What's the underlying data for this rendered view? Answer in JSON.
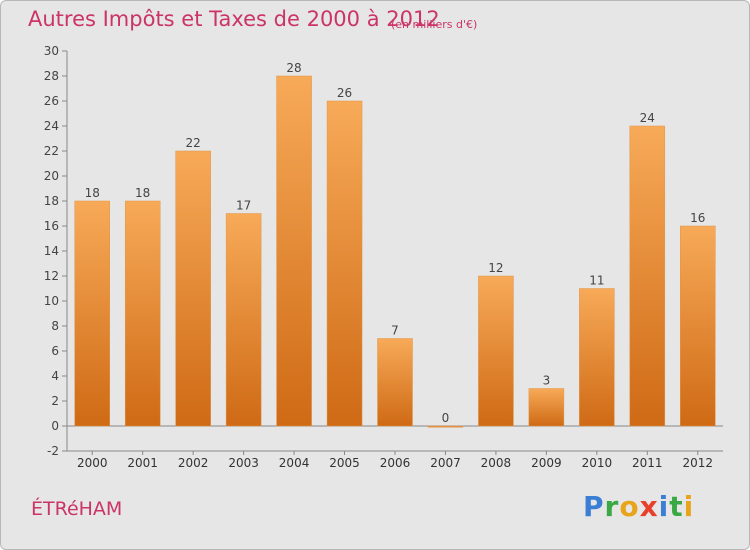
{
  "header": {
    "title": "Autres Impôts et Taxes de 2000 à 2012",
    "subtitle": "(en milliers d'€)"
  },
  "footer": {
    "commune": "ÉTRéHAM",
    "logo_text": "Proxiti",
    "logo_colors": [
      "#3a7fd5",
      "#3aa843",
      "#e8a51c",
      "#e8402a",
      "#3a7fd5",
      "#3aa843",
      "#e8a51c"
    ]
  },
  "colors": {
    "accent": "#cc3366",
    "bar_light": "#f5a54e",
    "bar_dark": "#d06a14",
    "background": "#e6e6e6"
  },
  "chart_data": {
    "type": "bar",
    "categories": [
      "2000",
      "2001",
      "2002",
      "2003",
      "2004",
      "2005",
      "2006",
      "2007",
      "2008",
      "2009",
      "2010",
      "2011",
      "2012"
    ],
    "values": [
      18,
      18,
      22,
      17,
      28,
      26,
      7,
      0,
      12,
      3,
      11,
      24,
      16
    ],
    "data_labels": [
      "18",
      "18",
      "22",
      "17",
      "28",
      "26",
      "7",
      "0",
      "12",
      "3",
      "11",
      "24",
      "16"
    ],
    "ylim": [
      -2,
      30
    ],
    "yticks": [
      -2,
      0,
      2,
      4,
      6,
      8,
      10,
      12,
      14,
      16,
      18,
      20,
      22,
      24,
      26,
      28,
      30
    ],
    "grid": false
  }
}
